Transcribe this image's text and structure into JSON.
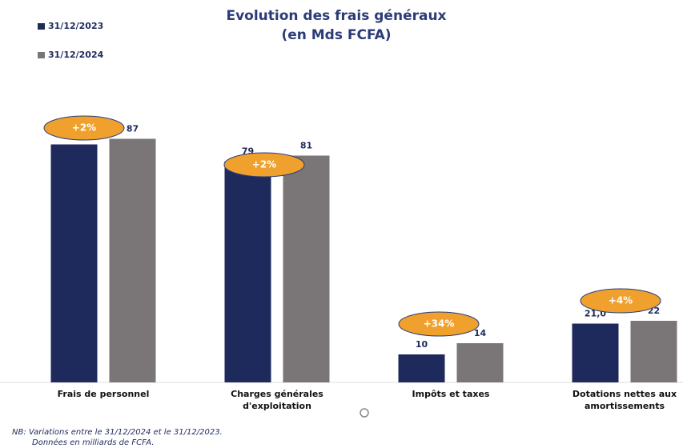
{
  "chart_data": {
    "type": "bar",
    "title": [
      "Evolution des frais généraux",
      "(en Mds FCFA)"
    ],
    "categories": [
      [
        "Frais de personnel"
      ],
      [
        "Charges générales",
        "d'exploitation"
      ],
      [
        "Impôts et taxes"
      ],
      [
        "Dotations nettes aux",
        "amortissements"
      ]
    ],
    "series": [
      {
        "name": "31/12/2023",
        "color": "#1f2a5c",
        "values": [
          85,
          79,
          10,
          21
        ],
        "value_labels": [
          "85",
          "79",
          "10",
          "21,0"
        ]
      },
      {
        "name": "31/12/2024",
        "color": "#7a7677",
        "values": [
          87,
          81,
          14,
          22
        ],
        "value_labels": [
          "87",
          "81",
          "14",
          "22"
        ]
      }
    ],
    "ylim": [
      0,
      100
    ],
    "annotations": [
      "+2%",
      "+2%",
      "+34%",
      "+4%"
    ],
    "footnote": [
      "NB: Variations  entre le 31/12/2024 et le 31/12/2023.",
      "Données en milliards de FCFA."
    ]
  }
}
